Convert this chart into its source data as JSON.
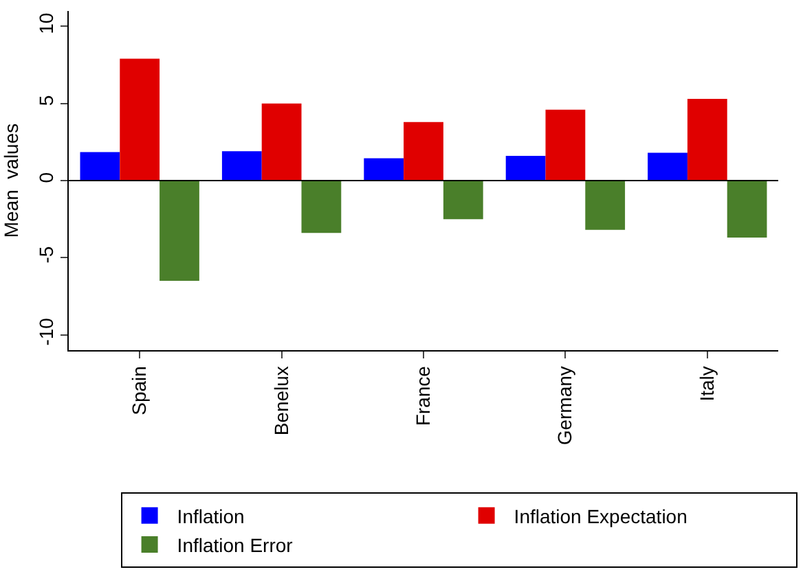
{
  "chart_data": {
    "type": "bar",
    "ylabel": "Mean  values",
    "categories": [
      "Spain",
      "Benelux",
      "France",
      "Germany",
      "Italy"
    ],
    "series": [
      {
        "name": "Inflation",
        "color": "#0000ff",
        "values": [
          1.85,
          1.9,
          1.45,
          1.6,
          1.8
        ]
      },
      {
        "name": "Inflation Expectation",
        "color": "#e00000",
        "values": [
          7.9,
          5.0,
          3.8,
          4.6,
          5.3
        ]
      },
      {
        "name": "Inflation Error",
        "color": "#4a7f2a",
        "values": [
          -6.5,
          -3.4,
          -2.5,
          -3.2,
          -3.7
        ]
      }
    ],
    "ylim": [
      -11,
      11
    ],
    "yticks": [
      -10,
      -5,
      0,
      5,
      10
    ],
    "grid": false,
    "legend": "bottom",
    "ref_lines": [
      {
        "axis": "y",
        "value": 0,
        "color": "#000000"
      }
    ]
  }
}
